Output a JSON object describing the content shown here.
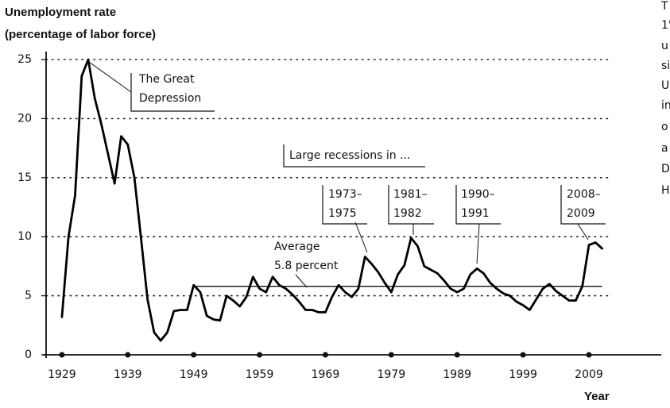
{
  "chart_data": {
    "type": "line",
    "y_axis_label": [
      "Unemployment rate",
      "(percentage of labor force)"
    ],
    "x_axis_label": "Year",
    "x": [
      1929,
      1930,
      1931,
      1932,
      1933,
      1934,
      1935,
      1936,
      1937,
      1938,
      1939,
      1940,
      1941,
      1942,
      1943,
      1944,
      1945,
      1946,
      1947,
      1948,
      1949,
      1950,
      1951,
      1952,
      1953,
      1954,
      1955,
      1956,
      1957,
      1958,
      1959,
      1960,
      1961,
      1962,
      1963,
      1964,
      1965,
      1966,
      1967,
      1968,
      1969,
      1970,
      1971,
      1972,
      1973,
      1974,
      1975,
      1976,
      1977,
      1978,
      1979,
      1980,
      1981,
      1982,
      1983,
      1984,
      1985,
      1986,
      1987,
      1988,
      1989,
      1990,
      1991,
      1992,
      1993,
      1994,
      1995,
      1996,
      1997,
      1998,
      1999,
      2000,
      2001,
      2002,
      2003,
      2004,
      2005,
      2006,
      2007,
      2008,
      2009,
      2010,
      2011
    ],
    "series": [
      {
        "name": "Unemployment rate",
        "color": "#000000",
        "values": [
          3.2,
          10.0,
          13.5,
          23.6,
          25.0,
          21.7,
          19.5,
          17.0,
          14.5,
          18.5,
          17.8,
          15.0,
          9.9,
          4.7,
          1.9,
          1.2,
          1.9,
          3.7,
          3.8,
          3.8,
          5.9,
          5.3,
          3.3,
          3.0,
          2.9,
          5.0,
          4.6,
          4.1,
          4.9,
          6.6,
          5.6,
          5.3,
          6.6,
          5.9,
          5.6,
          5.1,
          4.5,
          3.8,
          3.8,
          3.6,
          3.6,
          4.9,
          5.9,
          5.3,
          4.9,
          5.6,
          8.3,
          7.7,
          7.0,
          6.1,
          5.3,
          6.8,
          7.6,
          9.9,
          9.2,
          7.5,
          7.2,
          6.9,
          6.3,
          5.6,
          5.3,
          5.6,
          6.8,
          7.3,
          6.9,
          6.1,
          5.6,
          5.2,
          5.0,
          4.5,
          4.2,
          3.8,
          4.7,
          5.6,
          6.0,
          5.4,
          5.0,
          4.6,
          4.6,
          5.8,
          9.3,
          9.5,
          9.0
        ]
      }
    ],
    "average_line": {
      "value": 5.8,
      "start": 1949,
      "end": 2011
    },
    "annotations": [
      {
        "text": [
          "The Great",
          "Depression"
        ]
      },
      {
        "text": [
          "Large recessions in ..."
        ]
      },
      {
        "text": [
          "1973–",
          "1975"
        ]
      },
      {
        "text": [
          "1981–",
          "1982"
        ]
      },
      {
        "text": [
          "1990–",
          "1991"
        ]
      },
      {
        "text": [
          "2008–",
          "2009"
        ]
      },
      {
        "text": [
          "Average",
          "5.8 percent"
        ]
      }
    ],
    "margin_text": [
      "T",
      "1'",
      "u",
      "si",
      "U",
      "in",
      "o",
      "a",
      "D",
      "H"
    ],
    "xlim": [
      1926.6,
      2012.5
    ],
    "xticks": [
      1929,
      1939,
      1949,
      1959,
      1969,
      1979,
      1989,
      1999,
      2009
    ],
    "ylim": [
      0,
      25
    ],
    "yticks": [
      0,
      5,
      10,
      15,
      20,
      25
    ],
    "grid": true
  }
}
